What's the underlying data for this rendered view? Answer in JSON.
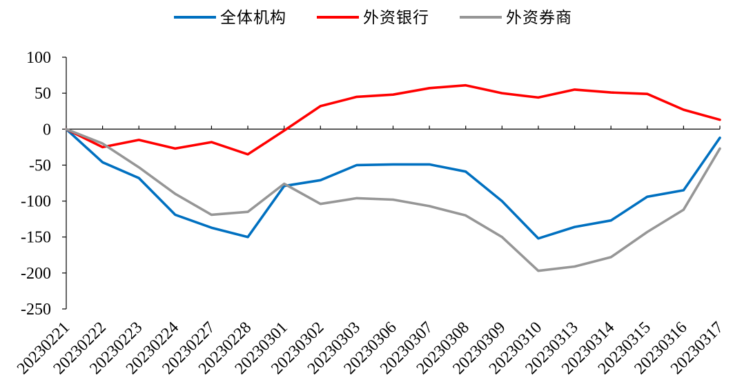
{
  "chart_data": {
    "type": "line",
    "title": "",
    "xlabel": "",
    "ylabel": "",
    "ylim": [
      -250,
      100
    ],
    "y_ticks": [
      100,
      50,
      0,
      -50,
      -100,
      -150,
      -200,
      -250
    ],
    "grid": false,
    "legend_position": "top",
    "categories": [
      "20230221",
      "20230222",
      "20230223",
      "20230224",
      "20230227",
      "20230228",
      "20230301",
      "20230302",
      "20230303",
      "20230306",
      "20230307",
      "20230308",
      "20230309",
      "20230310",
      "20230313",
      "20230314",
      "20230315",
      "20230316",
      "20230317"
    ],
    "series": [
      {
        "name": "全体机构",
        "color": "#0070C0",
        "values": [
          0,
          -46,
          -68,
          -119,
          -137,
          -150,
          -79,
          -71,
          -50,
          -49,
          -49,
          -59,
          -100,
          -152,
          -136,
          -127,
          -94,
          -85,
          -12
        ]
      },
      {
        "name": "外资银行",
        "color": "#FF0000",
        "values": [
          0,
          -25,
          -15,
          -27,
          -18,
          -35,
          -2,
          32,
          45,
          48,
          57,
          61,
          50,
          44,
          55,
          51,
          49,
          27,
          13
        ]
      },
      {
        "name": "外资券商",
        "color": "#969696",
        "values": [
          0,
          -20,
          -53,
          -90,
          -119,
          -115,
          -76,
          -104,
          -96,
          -98,
          -107,
          -120,
          -150,
          -197,
          -191,
          -178,
          -143,
          -112,
          -27
        ]
      }
    ]
  }
}
